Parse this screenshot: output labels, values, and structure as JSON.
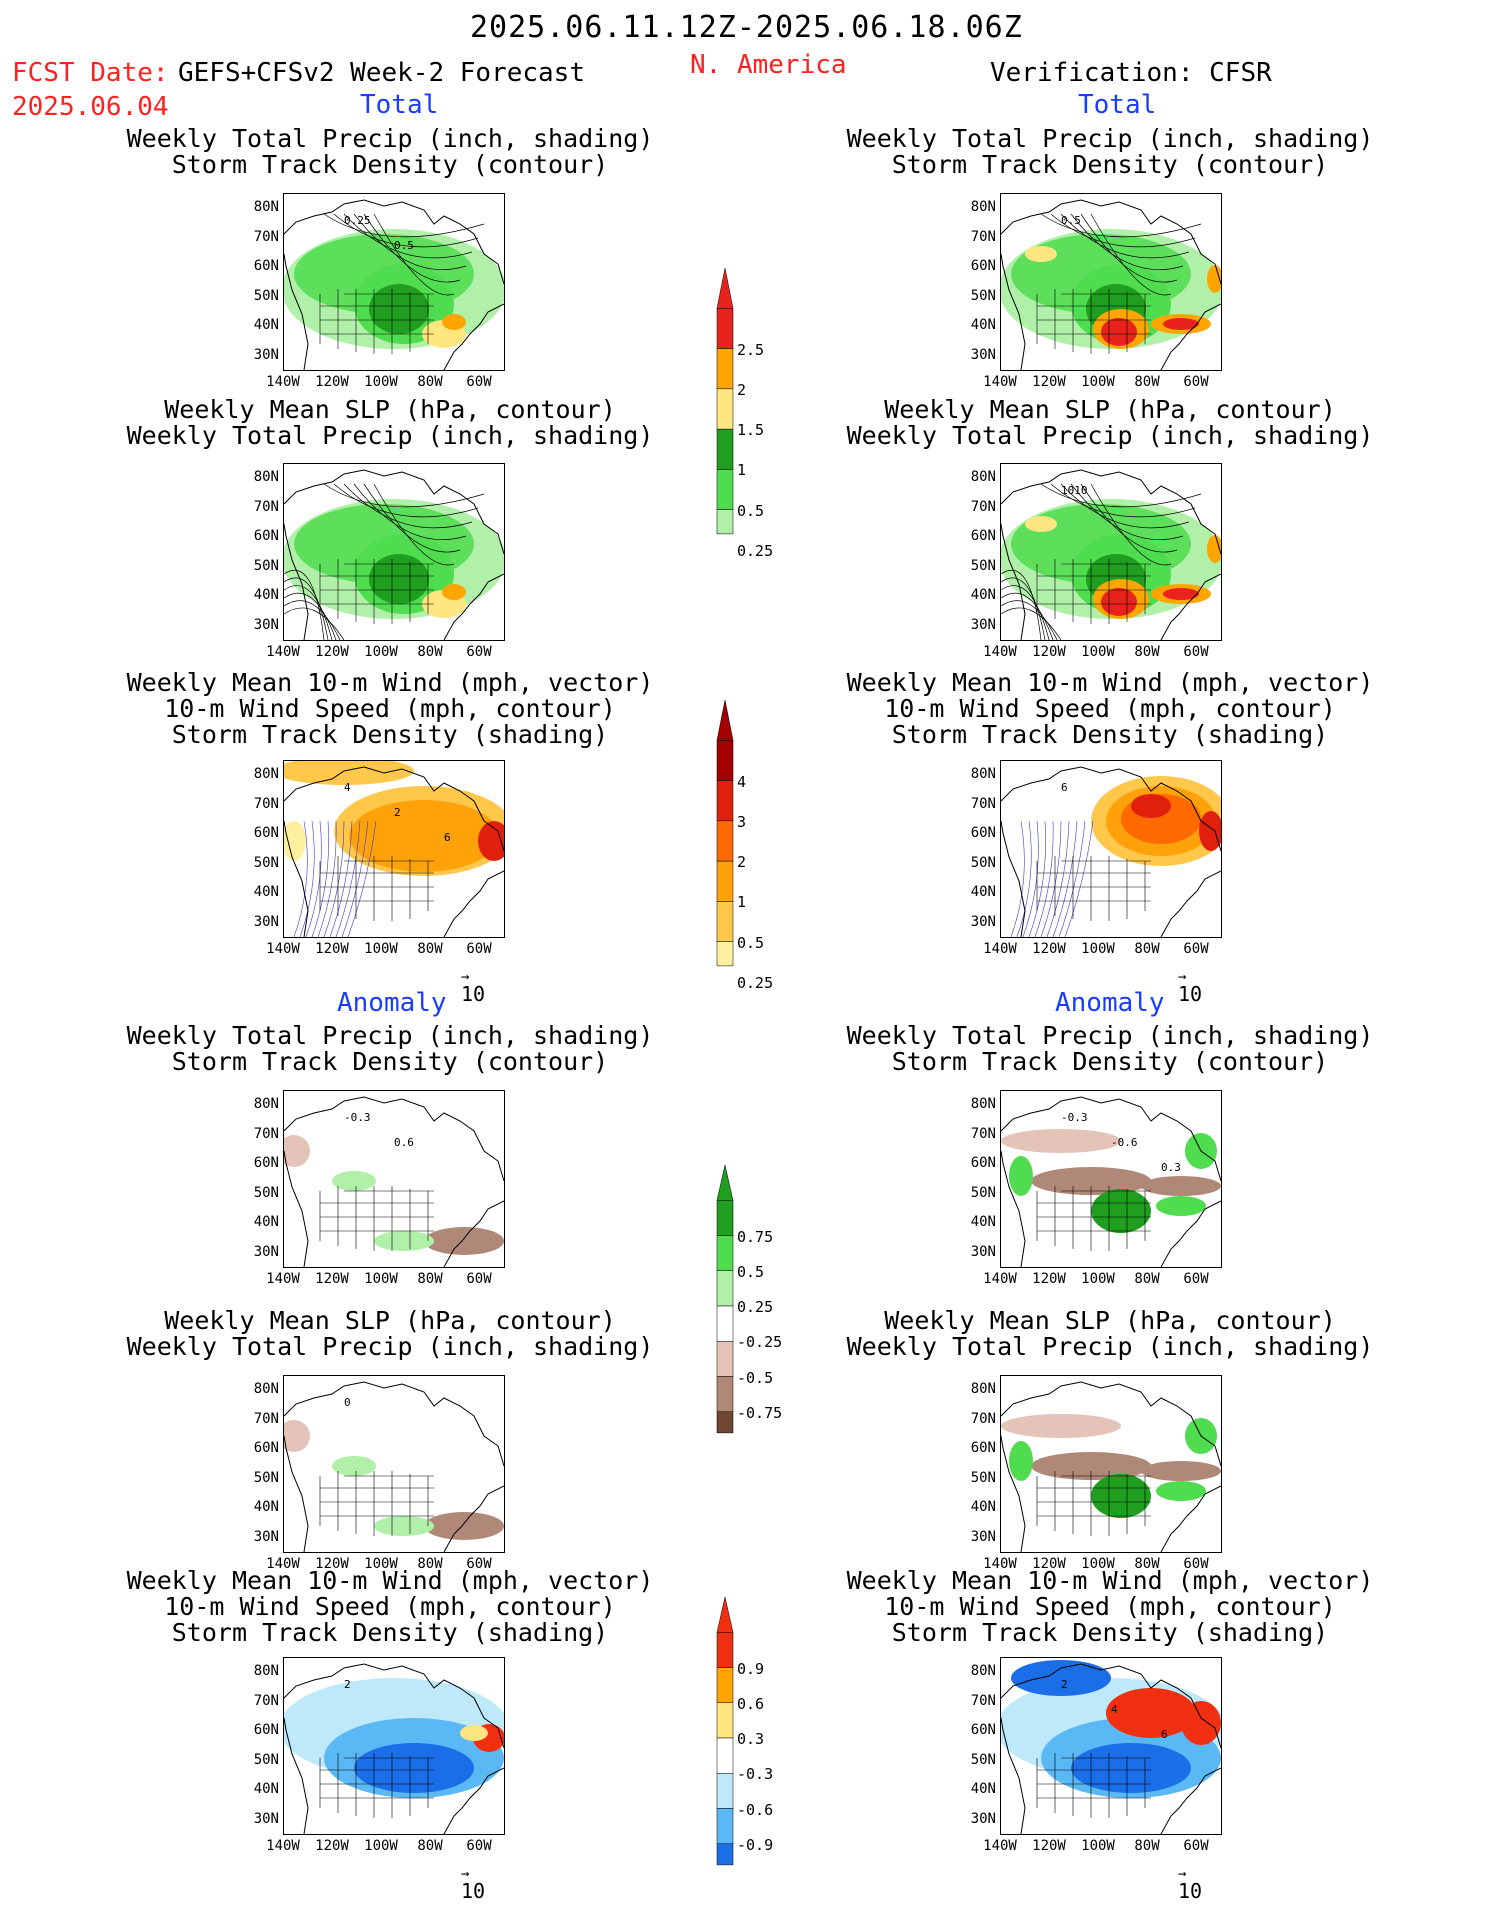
{
  "header": {
    "period": "2025.06.11.12Z-2025.06.18.06Z",
    "fcst_label": "FCST Date:",
    "fcst_date": "2025.06.04",
    "model": "GEFS+CFSv2 Week-2 Forecast",
    "region": "N. America",
    "verification": "Verification: CFSR"
  },
  "sections": {
    "total": "Total",
    "anomaly": "Anomaly"
  },
  "titles": {
    "precip_storm": [
      "Weekly Total Precip (inch, shading)",
      "Storm Track Density (contour)"
    ],
    "slp_precip": [
      "Weekly Mean SLP (hPa, contour)",
      "Weekly Total Precip (inch, shading)"
    ],
    "wind_storm": [
      "Weekly Mean 10-m Wind (mph, vector)",
      "10-m Wind Speed (mph, contour)",
      "Storm Track Density (shading)"
    ]
  },
  "axes": {
    "lat_ticks": [
      "80N",
      "70N",
      "60N",
      "50N",
      "40N",
      "30N"
    ],
    "lon_ticks": [
      "140W",
      "120W",
      "100W",
      "80W",
      "60W"
    ]
  },
  "vector_ref": "10",
  "colorbars": {
    "total_precip": {
      "labels": [
        "2.5",
        "2",
        "1.5",
        "1",
        "0.5",
        "0.25"
      ],
      "colors": [
        "#e8231d",
        "#ffa500",
        "#ffe680",
        "#1f9e1f",
        "#4fdc4f",
        "#b0f0a8"
      ]
    },
    "total_storm": {
      "labels": [
        "4",
        "3",
        "2",
        "1",
        "0.5",
        "0.25"
      ],
      "colors": [
        "#a50000",
        "#e0200c",
        "#ff6a00",
        "#ffa20a",
        "#ffc84a",
        "#fff0a0"
      ]
    },
    "anom_precip": {
      "labels": [
        "0.75",
        "0.5",
        "0.25",
        "-0.25",
        "-0.5",
        "-0.75"
      ],
      "colors": [
        "#1f9e1f",
        "#4fdc4f",
        "#b0f0a8",
        "#ffffff",
        "#e4c4b8",
        "#b08878",
        "#6e4632"
      ]
    },
    "anom_storm": {
      "labels": [
        "0.9",
        "0.6",
        "0.3",
        "-0.3",
        "-0.6",
        "-0.9"
      ],
      "colors": [
        "#f03010",
        "#ffa500",
        "#ffe680",
        "#ffffff",
        "#bde9fb",
        "#5ab8f5",
        "#1a6ee8"
      ]
    }
  },
  "panel_labels": {
    "fc_total_storm": [
      "0.25",
      "0.5"
    ],
    "vf_total_storm": [
      "0.5"
    ],
    "vf_total_slp": [
      "1010"
    ],
    "fc_total_wind": [
      "4",
      "2",
      "6"
    ],
    "vf_total_wind": [
      "6"
    ],
    "fc_anom_storm": [
      "-0.3",
      "0.6"
    ],
    "vf_anom_storm": [
      "-0.3",
      "-0.6",
      "0.3"
    ],
    "fc_anom_slp": [
      "0"
    ],
    "fc_anom_wind": [
      "2"
    ],
    "vf_anom_wind": [
      "2",
      "4",
      "6"
    ]
  }
}
